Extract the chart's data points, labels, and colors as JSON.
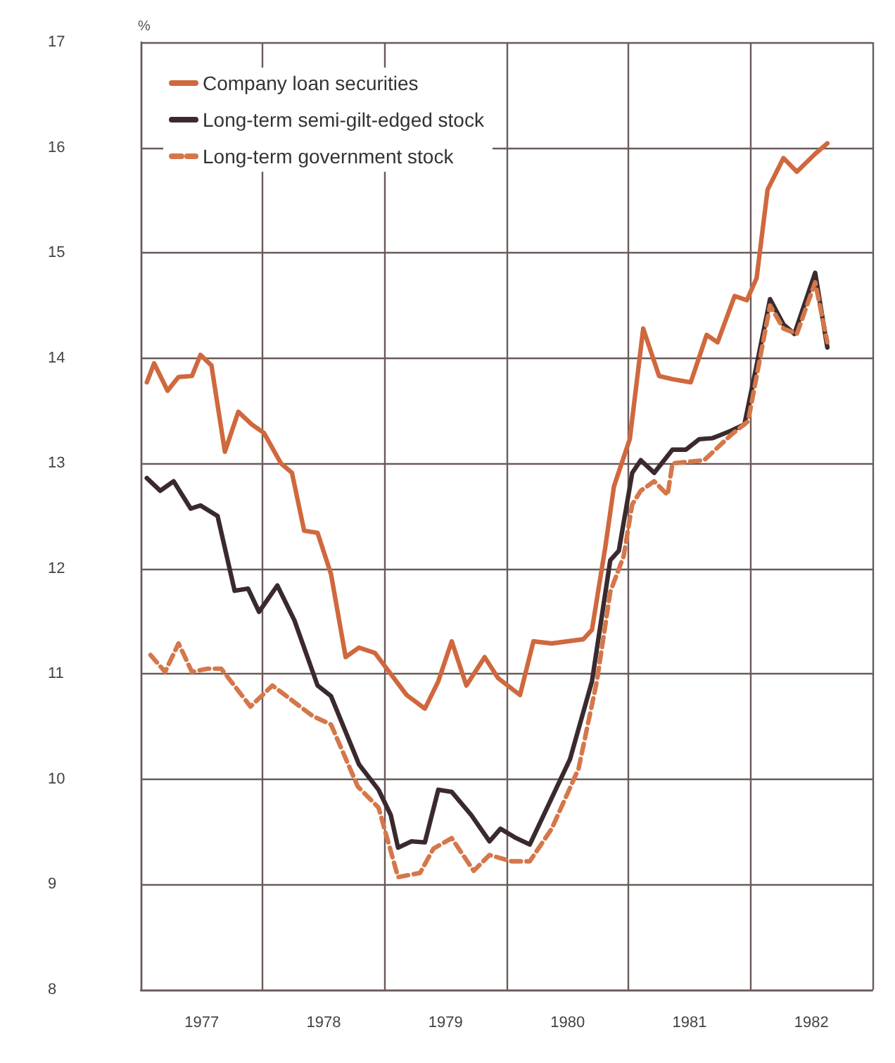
{
  "chart_data": {
    "type": "line",
    "ylabel": "%",
    "xlim": [
      1977,
      1983
    ],
    "xticks": [
      {
        "value": 1977,
        "label": null
      },
      {
        "value": 1977.5,
        "label": "1977"
      },
      {
        "value": 1978,
        "label": null
      },
      {
        "value": 1978.5,
        "label": "1978"
      },
      {
        "value": 1979,
        "label": null
      },
      {
        "value": 1979.5,
        "label": "1979"
      },
      {
        "value": 1980,
        "label": null
      },
      {
        "value": 1980.5,
        "label": "1980"
      },
      {
        "value": 1981,
        "label": null
      },
      {
        "value": 1981.5,
        "label": "1981"
      },
      {
        "value": 1982,
        "label": null
      },
      {
        "value": 1982.5,
        "label": "1982"
      },
      {
        "value": 1983,
        "label": null
      }
    ],
    "ylim": [
      8,
      17
    ],
    "yticks": [
      8,
      9,
      10,
      11,
      12,
      13,
      14,
      15,
      16,
      17
    ],
    "grid": true,
    "legend": "top left",
    "marker": "none",
    "series": [
      {
        "name": "Company loan securities",
        "color": "#d0683e",
        "line_style": "solid",
        "x": [
          1977.05,
          1977.11,
          1977.22,
          1977.31,
          1977.42,
          1977.49,
          1977.58,
          1977.69,
          1977.8,
          1977.91,
          1978.01,
          1978.15,
          1978.24,
          1978.34,
          1978.45,
          1978.56,
          1978.68,
          1978.79,
          1978.92,
          1979.18,
          1979.33,
          1979.44,
          1979.55,
          1979.67,
          1979.82,
          1979.93,
          1980.11,
          1980.22,
          1980.37,
          1980.63,
          1980.7,
          1980.81,
          1980.88,
          1981.01,
          1981.12,
          1981.25,
          1981.36,
          1981.51,
          1981.64,
          1981.73,
          1981.87,
          1981.97,
          1982.05,
          1982.14,
          1982.27,
          1982.38,
          1982.53,
          1982.63
        ],
        "values": [
          13.77,
          13.95,
          13.69,
          13.82,
          13.83,
          14.03,
          13.93,
          13.11,
          13.49,
          13.37,
          13.29,
          13.0,
          12.91,
          12.36,
          12.34,
          11.95,
          11.16,
          11.25,
          11.2,
          10.8,
          10.67,
          10.93,
          11.31,
          10.89,
          11.16,
          10.96,
          10.8,
          11.31,
          11.29,
          11.33,
          11.42,
          12.21,
          12.78,
          13.23,
          14.28,
          13.83,
          13.8,
          13.77,
          14.22,
          14.15,
          14.59,
          14.55,
          14.76,
          15.6,
          15.9,
          15.77,
          15.94,
          16.04
        ]
      },
      {
        "name": "Long-term semi-gilt-edged stock",
        "color": "#3a2a2e",
        "line_style": "solid",
        "x": [
          1977.05,
          1977.16,
          1977.27,
          1977.41,
          1977.49,
          1977.63,
          1977.77,
          1977.88,
          1977.97,
          1978.12,
          1978.26,
          1978.45,
          1978.56,
          1978.79,
          1978.95,
          1979.05,
          1979.11,
          1979.22,
          1979.33,
          1979.44,
          1979.55,
          1979.71,
          1979.86,
          1979.95,
          1980.08,
          1980.19,
          1980.52,
          1980.7,
          1980.85,
          1980.92,
          1981.03,
          1981.1,
          1981.21,
          1981.36,
          1981.47,
          1981.58,
          1981.69,
          1981.84,
          1981.95,
          1982.05,
          1982.16,
          1982.27,
          1982.36,
          1982.53,
          1982.63
        ],
        "values": [
          12.86,
          12.74,
          12.83,
          12.57,
          12.6,
          12.5,
          11.79,
          11.81,
          11.59,
          11.84,
          11.51,
          10.89,
          10.79,
          10.14,
          9.9,
          9.66,
          9.35,
          9.41,
          9.4,
          9.9,
          9.88,
          9.66,
          9.41,
          9.53,
          9.44,
          9.38,
          10.19,
          10.93,
          12.08,
          12.17,
          12.91,
          13.03,
          12.91,
          13.13,
          13.13,
          13.23,
          13.24,
          13.31,
          13.37,
          13.93,
          14.56,
          14.32,
          14.23,
          14.81,
          14.1
        ]
      },
      {
        "name": "Long-term government stock",
        "color": "#d4774a",
        "line_style": "dashed",
        "x": [
          1977.08,
          1977.2,
          1977.31,
          1977.42,
          1977.55,
          1977.66,
          1977.9,
          1978.08,
          1978.41,
          1978.56,
          1978.78,
          1978.95,
          1979.11,
          1979.29,
          1979.4,
          1979.55,
          1979.73,
          1979.86,
          1980.04,
          1980.19,
          1980.37,
          1980.59,
          1980.74,
          1980.85,
          1980.96,
          1981.03,
          1981.1,
          1981.21,
          1981.32,
          1981.36,
          1981.62,
          1981.84,
          1981.98,
          1982.16,
          1982.27,
          1982.38,
          1982.53,
          1982.63
        ],
        "values": [
          11.18,
          11.02,
          11.29,
          11.02,
          11.05,
          11.05,
          10.69,
          10.89,
          10.6,
          10.52,
          9.93,
          9.73,
          9.07,
          9.11,
          9.34,
          9.44,
          9.13,
          9.28,
          9.22,
          9.22,
          9.53,
          10.1,
          10.93,
          11.78,
          12.12,
          12.61,
          12.74,
          12.83,
          12.7,
          13.0,
          13.03,
          13.27,
          13.4,
          14.5,
          14.28,
          14.23,
          14.72,
          14.15
        ]
      }
    ]
  }
}
